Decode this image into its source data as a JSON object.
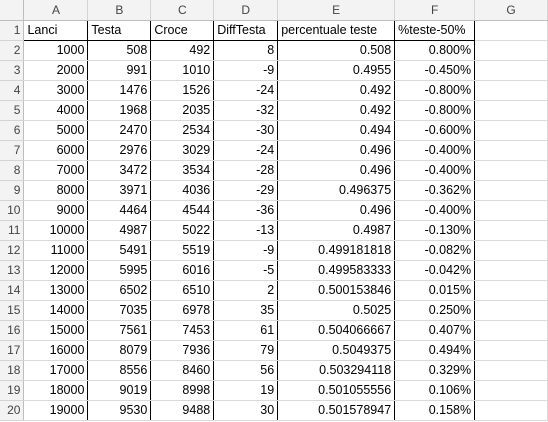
{
  "column_headers": [
    "A",
    "B",
    "C",
    "D",
    "E",
    "F",
    "G"
  ],
  "header_row": {
    "row_number": "1",
    "cells": [
      "Lanci",
      "Testa",
      "Croce",
      "DiffTesta",
      "percentuale teste",
      "%teste-50%",
      ""
    ]
  },
  "rows": [
    {
      "n": "2",
      "cells": [
        "1000",
        "508",
        "492",
        "8",
        "0.508",
        "0.800%",
        ""
      ]
    },
    {
      "n": "3",
      "cells": [
        "2000",
        "991",
        "1010",
        "-9",
        "0.4955",
        "-0.450%",
        ""
      ]
    },
    {
      "n": "4",
      "cells": [
        "3000",
        "1476",
        "1526",
        "-24",
        "0.492",
        "-0.800%",
        ""
      ]
    },
    {
      "n": "5",
      "cells": [
        "4000",
        "1968",
        "2035",
        "-32",
        "0.492",
        "-0.800%",
        ""
      ]
    },
    {
      "n": "6",
      "cells": [
        "5000",
        "2470",
        "2534",
        "-30",
        "0.494",
        "-0.600%",
        ""
      ]
    },
    {
      "n": "7",
      "cells": [
        "6000",
        "2976",
        "3029",
        "-24",
        "0.496",
        "-0.400%",
        ""
      ]
    },
    {
      "n": "8",
      "cells": [
        "7000",
        "3472",
        "3534",
        "-28",
        "0.496",
        "-0.400%",
        ""
      ]
    },
    {
      "n": "9",
      "cells": [
        "8000",
        "3971",
        "4036",
        "-29",
        "0.496375",
        "-0.362%",
        ""
      ]
    },
    {
      "n": "10",
      "cells": [
        "9000",
        "4464",
        "4544",
        "-36",
        "0.496",
        "-0.400%",
        ""
      ]
    },
    {
      "n": "11",
      "cells": [
        "10000",
        "4987",
        "5022",
        "-13",
        "0.4987",
        "-0.130%",
        ""
      ]
    },
    {
      "n": "12",
      "cells": [
        "11000",
        "5491",
        "5519",
        "-9",
        "0.499181818",
        "-0.082%",
        ""
      ]
    },
    {
      "n": "13",
      "cells": [
        "12000",
        "5995",
        "6016",
        "-5",
        "0.499583333",
        "-0.042%",
        ""
      ]
    },
    {
      "n": "14",
      "cells": [
        "13000",
        "6502",
        "6510",
        "2",
        "0.500153846",
        "0.015%",
        ""
      ]
    },
    {
      "n": "15",
      "cells": [
        "14000",
        "7035",
        "6978",
        "35",
        "0.5025",
        "0.250%",
        ""
      ]
    },
    {
      "n": "16",
      "cells": [
        "15000",
        "7561",
        "7453",
        "61",
        "0.504066667",
        "0.407%",
        ""
      ]
    },
    {
      "n": "17",
      "cells": [
        "16000",
        "8079",
        "7936",
        "79",
        "0.5049375",
        "0.494%",
        ""
      ]
    },
    {
      "n": "18",
      "cells": [
        "17000",
        "8556",
        "8460",
        "56",
        "0.503294118",
        "0.329%",
        ""
      ]
    },
    {
      "n": "19",
      "cells": [
        "18000",
        "9019",
        "8998",
        "19",
        "0.501055556",
        "0.106%",
        ""
      ]
    },
    {
      "n": "20",
      "cells": [
        "19000",
        "9530",
        "9488",
        "30",
        "0.501578947",
        "0.158%",
        ""
      ]
    }
  ],
  "colors": {
    "header_bg": "#f3f3f3",
    "gridline": "#d9d9d9",
    "table_border": "#000000"
  }
}
